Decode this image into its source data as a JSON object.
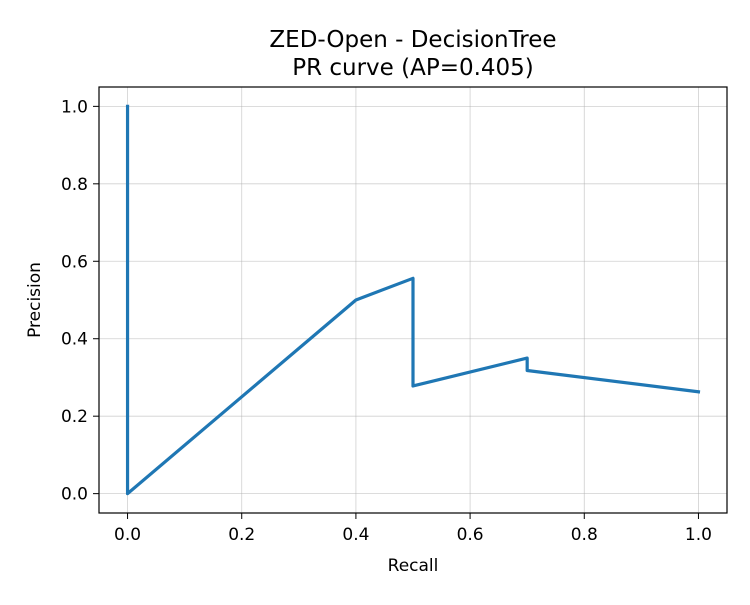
{
  "chart_data": {
    "type": "line",
    "title": "ZED-Open - DecisionTree",
    "subtitle": "PR curve (AP=0.405)",
    "xlabel": "Recall",
    "ylabel": "Precision",
    "xlim": [
      -0.05,
      1.05
    ],
    "ylim": [
      -0.05,
      1.05
    ],
    "xticks": [
      "0.0",
      "0.2",
      "0.4",
      "0.6",
      "0.8",
      "1.0"
    ],
    "yticks": [
      "0.0",
      "0.2",
      "0.4",
      "0.6",
      "0.8",
      "1.0"
    ],
    "grid": true,
    "series": [
      {
        "color": "#1f77b4",
        "x": [
          0.0,
          0.0,
          0.4,
          0.5,
          0.5,
          0.7,
          0.7,
          1.0
        ],
        "y": [
          1.0,
          0.0,
          0.5,
          0.556,
          0.278,
          0.35,
          0.318,
          0.263
        ]
      }
    ]
  }
}
